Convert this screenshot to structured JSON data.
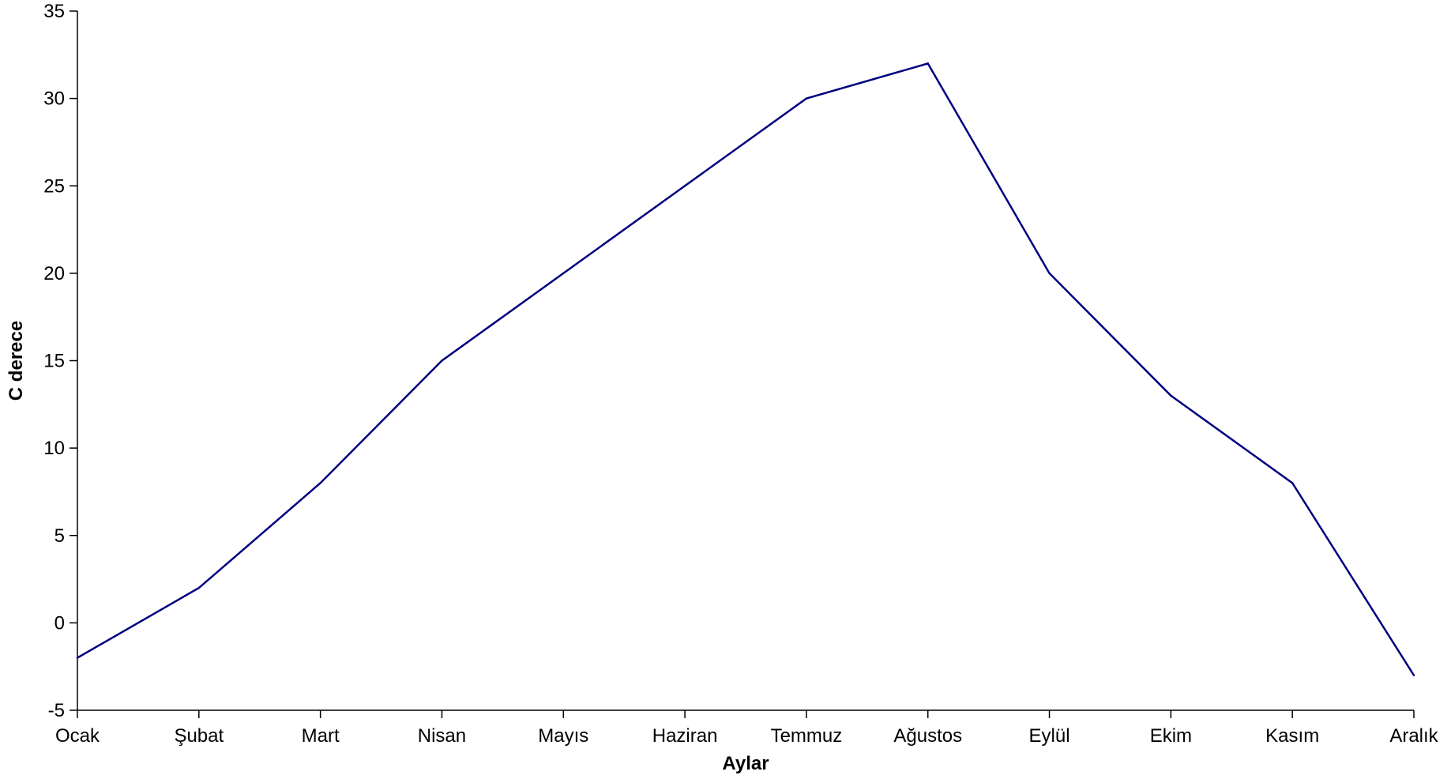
{
  "chart_data": {
    "type": "line",
    "title": "",
    "xlabel": "Aylar",
    "ylabel": "C derece",
    "categories": [
      "Ocak",
      "Şubat",
      "Mart",
      "Nisan",
      "Mayıs",
      "Haziran",
      "Temmuz",
      "Ağustos",
      "Eylül",
      "Ekim",
      "Kasım",
      "Aralık"
    ],
    "series": [
      {
        "values": [
          -2,
          2,
          8,
          15,
          20,
          25,
          30,
          32,
          20,
          13,
          8,
          -3
        ],
        "color": "#000080"
      }
    ],
    "ylim": [
      -5,
      35
    ],
    "yticks": [
      -5,
      0,
      5,
      10,
      15,
      20,
      25,
      30,
      35
    ],
    "grid": false,
    "legend": "none"
  }
}
